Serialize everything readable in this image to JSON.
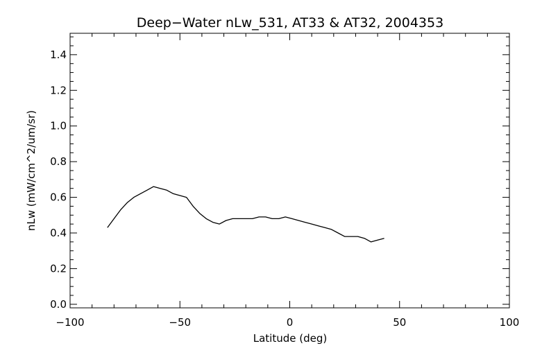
{
  "chart_data": {
    "type": "line",
    "title": "Deep−Water nLw_531, AT33 & AT32, 2004353",
    "xlabel": "Latitude (deg)",
    "ylabel": "nLw (mW/cm^2/um/sr)",
    "xlim": [
      -100,
      100
    ],
    "ylim": [
      -0.02,
      1.52
    ],
    "x_ticks": [
      -100,
      -50,
      0,
      50,
      100
    ],
    "x_tick_labels": [
      "−100",
      "−50",
      "0",
      "50",
      "100"
    ],
    "y_ticks": [
      0.0,
      0.2,
      0.4,
      0.6,
      0.8,
      1.0,
      1.2,
      1.4
    ],
    "y_tick_labels": [
      "0.0",
      "0.2",
      "0.4",
      "0.6",
      "0.8",
      "1.0",
      "1.2",
      "1.4"
    ],
    "x_minor_step": 10,
    "y_minor_step": 0.05,
    "grid": false,
    "line_color": "#000000",
    "series": [
      {
        "x": [
          -83,
          -80,
          -77,
          -74,
          -71,
          -68,
          -65,
          -62,
          -59,
          -56,
          -53,
          -50,
          -47,
          -44,
          -41,
          -38,
          -35,
          -32,
          -29,
          -26,
          -23,
          -20,
          -17,
          -14,
          -11,
          -8,
          -5,
          -2,
          1,
          4,
          7,
          10,
          13,
          16,
          19,
          22,
          25,
          28,
          31,
          34,
          37,
          40,
          43
        ],
        "y": [
          0.43,
          0.48,
          0.53,
          0.57,
          0.6,
          0.62,
          0.64,
          0.66,
          0.65,
          0.64,
          0.62,
          0.61,
          0.6,
          0.55,
          0.51,
          0.48,
          0.46,
          0.45,
          0.47,
          0.48,
          0.48,
          0.48,
          0.48,
          0.49,
          0.49,
          0.48,
          0.48,
          0.49,
          0.48,
          0.47,
          0.46,
          0.45,
          0.44,
          0.43,
          0.42,
          0.4,
          0.38,
          0.38,
          0.38,
          0.37,
          0.35,
          0.36,
          0.37
        ]
      }
    ]
  }
}
